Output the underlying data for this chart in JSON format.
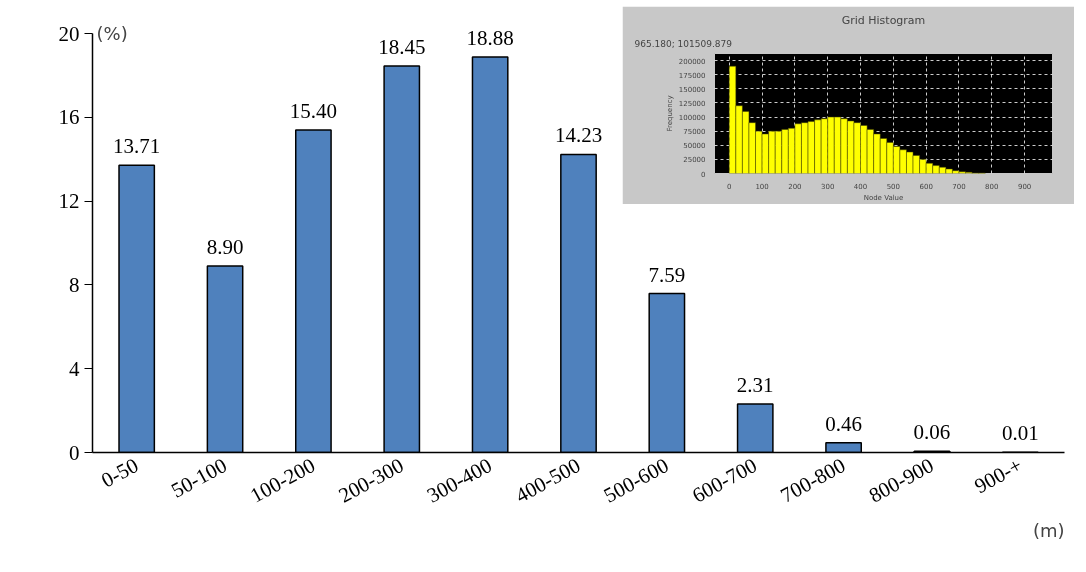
{
  "chart_data": [
    {
      "type": "bar",
      "xlabel": "(m)",
      "ylabel": "(%)",
      "categories": [
        "0-50",
        "50-100",
        "100-200",
        "200-300",
        "300-400",
        "400-500",
        "500-600",
        "600-700",
        "700-800",
        "800-900",
        "900-+"
      ],
      "values": [
        13.71,
        8.9,
        15.4,
        18.45,
        18.88,
        14.23,
        7.59,
        2.31,
        0.46,
        0.06,
        0.01
      ],
      "value_labels": [
        "13.71",
        "8.90",
        "15.40",
        "18.45",
        "18.88",
        "14.23",
        "7.59",
        "2.31",
        "0.46",
        "0.06",
        "0.01"
      ],
      "color": "#4f81bd",
      "ylim": [
        0,
        20
      ],
      "yticks": [
        0,
        4,
        8,
        12,
        16,
        20
      ]
    },
    {
      "type": "histogram",
      "title": "Grid Histogram",
      "xlabel": "Node Value",
      "ylabel": "Frequency",
      "annotations": [
        "965.180; 101509.879"
      ],
      "bins": [
        0,
        20,
        40,
        60,
        80,
        100,
        120,
        140,
        160,
        180,
        200,
        220,
        240,
        260,
        280,
        300,
        320,
        340,
        360,
        380,
        400,
        420,
        440,
        460,
        480,
        500,
        520,
        540,
        560,
        580,
        600,
        620,
        640,
        660,
        680,
        700,
        720,
        740,
        760,
        780
      ],
      "values": [
        190000,
        120000,
        110000,
        90000,
        75000,
        70000,
        75000,
        75000,
        78000,
        80000,
        88000,
        90000,
        92000,
        95000,
        97000,
        100000,
        100000,
        97000,
        93000,
        90000,
        85000,
        78000,
        70000,
        62000,
        55000,
        48000,
        42000,
        38000,
        32000,
        25000,
        18000,
        14000,
        11000,
        8000,
        5000,
        3000,
        2000,
        1000,
        1000
      ],
      "color": "#ffff00",
      "xlim": [
        -45,
        985
      ],
      "xticks": [
        0,
        100,
        200,
        300,
        400,
        500,
        600,
        700,
        800,
        900
      ],
      "ylim": [
        0,
        212500
      ],
      "yticks": [
        0,
        25000,
        50000,
        75000,
        100000,
        125000,
        150000,
        175000,
        200000
      ],
      "grid": true
    }
  ]
}
